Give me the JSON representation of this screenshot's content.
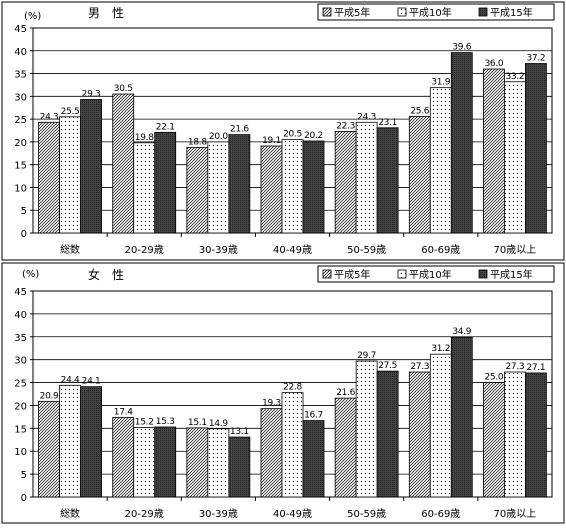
{
  "chart_data": [
    {
      "type": "bar",
      "title": "男　性",
      "ylabel": "(%)",
      "ylim": [
        0,
        45
      ],
      "yticks": [
        0,
        5,
        10,
        15,
        20,
        25,
        30,
        35,
        40,
        45
      ],
      "grid": true,
      "legend_position": "top-right",
      "categories": [
        "総数",
        "20-29歳",
        "30-39歳",
        "40-49歳",
        "50-59歳",
        "60-69歳",
        "70歳以上"
      ],
      "series": [
        {
          "name": "平成5年",
          "values": [
            24.3,
            30.5,
            18.8,
            19.1,
            22.3,
            25.6,
            36.0
          ]
        },
        {
          "name": "平成10年",
          "values": [
            25.5,
            19.8,
            20.0,
            20.5,
            24.3,
            31.9,
            33.2
          ]
        },
        {
          "name": "平成15年",
          "values": [
            29.3,
            22.1,
            21.6,
            20.2,
            23.1,
            39.6,
            37.2
          ]
        }
      ]
    },
    {
      "type": "bar",
      "title": "女　性",
      "ylabel": "(%)",
      "ylim": [
        0,
        45
      ],
      "yticks": [
        0,
        5,
        10,
        15,
        20,
        25,
        30,
        35,
        40,
        45
      ],
      "grid": true,
      "legend_position": "top-right",
      "categories": [
        "総数",
        "20-29歳",
        "30-39歳",
        "40-49歳",
        "50-59歳",
        "60-69歳",
        "70歳以上"
      ],
      "series": [
        {
          "name": "平成5年",
          "values": [
            20.9,
            17.4,
            15.1,
            19.3,
            21.6,
            27.3,
            25.0
          ]
        },
        {
          "name": "平成10年",
          "values": [
            24.4,
            15.2,
            14.9,
            22.8,
            29.7,
            31.2,
            27.3
          ]
        },
        {
          "name": "平成15年",
          "values": [
            24.1,
            15.3,
            13.1,
            16.7,
            27.5,
            34.9,
            27.1
          ]
        }
      ]
    }
  ]
}
